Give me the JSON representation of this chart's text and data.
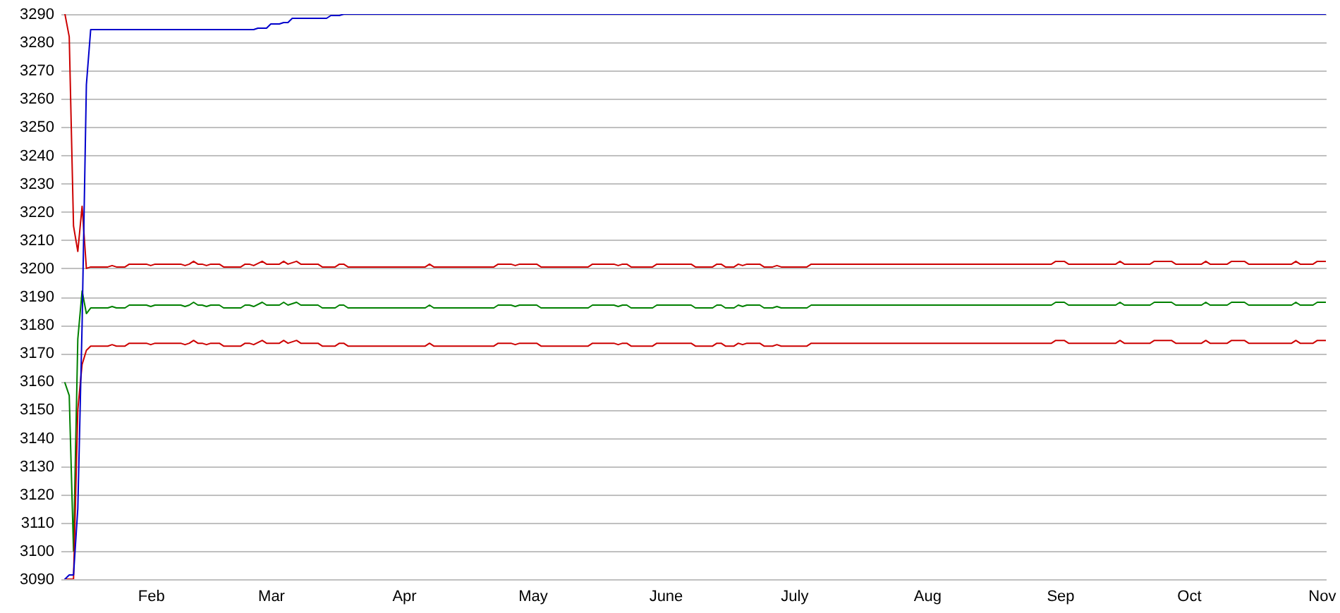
{
  "chart_data": {
    "type": "line",
    "x": [
      "--01-12",
      "--01-13",
      "--01-14",
      "--01-15",
      "--01-16",
      "--01-17",
      "--01-18",
      "--01-22",
      "--01-23",
      "--01-24",
      "--01-26",
      "--01-27",
      "--01-31",
      "--02-01",
      "--02-02",
      "--02-08",
      "--02-09",
      "--02-10",
      "--02-11",
      "--02-12",
      "--02-13",
      "--02-14",
      "--02-15",
      "--02-17",
      "--02-18",
      "--02-22",
      "--02-23",
      "--02-24",
      "--02-25",
      "--02-27",
      "--02-28",
      "--03-03",
      "--03-04",
      "--03-05",
      "--03-07",
      "--03-08",
      "--03-12",
      "--03-13",
      "--03-16",
      "--03-17",
      "--03-18",
      "--03-19",
      "--04-06",
      "--04-07",
      "--04-08",
      "--04-22",
      "--04-23",
      "--04-26",
      "--04-27",
      "--04-28",
      "--05-02",
      "--05-03",
      "--05-14",
      "--05-15",
      "--05-20",
      "--05-21",
      "--05-22",
      "--05-23",
      "--05-24",
      "--05-29",
      "--05-30",
      "--06-07",
      "--06-08",
      "--06-12",
      "--06-13",
      "--06-14",
      "--06-15",
      "--06-17",
      "--06-18",
      "--06-19",
      "--06-20",
      "--06-23",
      "--06-24",
      "--06-26",
      "--06-27",
      "--06-28",
      "--07-04",
      "--07-05",
      "--08-30",
      "--08-31",
      "--09-02",
      "--09-03",
      "--09-14",
      "--09-15",
      "--09-16",
      "--09-22",
      "--09-23",
      "--09-27",
      "--09-28",
      "--10-04",
      "--10-05",
      "--10-06",
      "--10-10",
      "--10-11",
      "--10-14",
      "--10-15",
      "--10-25",
      "--10-26",
      "--10-27",
      "--10-30",
      "--10-31",
      "--11-02"
    ],
    "xlim": [
      "--01-11",
      "--11-02"
    ],
    "xticks": [
      {
        "value": "--02-01",
        "label": "Feb"
      },
      {
        "value": "--03-01",
        "label": "Mar"
      },
      {
        "value": "--04-01",
        "label": "Apr"
      },
      {
        "value": "--05-01",
        "label": "May"
      },
      {
        "value": "--06-01",
        "label": "June"
      },
      {
        "value": "--07-01",
        "label": "July"
      },
      {
        "value": "--08-01",
        "label": "Aug"
      },
      {
        "value": "--09-01",
        "label": "Sep"
      },
      {
        "value": "--10-01",
        "label": "Oct"
      },
      {
        "value": "--11-01",
        "label": "Nov"
      }
    ],
    "ylim": [
      3090,
      3290
    ],
    "yticks": [
      3090,
      3100,
      3110,
      3120,
      3130,
      3140,
      3150,
      3160,
      3170,
      3180,
      3190,
      3200,
      3210,
      3220,
      3230,
      3240,
      3250,
      3260,
      3270,
      3280,
      3290
    ],
    "grid": "y",
    "series": [
      {
        "color": "#cc0000",
        "values": [
          3290,
          3282,
          3215,
          3206,
          3222,
          3200,
          3200.5,
          3200.5,
          3201,
          3200.5,
          3200.5,
          3201.5,
          3201.5,
          3201,
          3201.5,
          3201.5,
          3201,
          3201.5,
          3202.5,
          3201.5,
          3201.5,
          3201,
          3201.5,
          3201.5,
          3200.5,
          3200.5,
          3201.5,
          3201.5,
          3201,
          3202.5,
          3201.5,
          3201.5,
          3202.5,
          3201.5,
          3202.5,
          3201.5,
          3201.5,
          3200.5,
          3200.5,
          3201.5,
          3201.5,
          3200.5,
          3200.5,
          3201.5,
          3200.5,
          3200.5,
          3201.5,
          3201.5,
          3201,
          3201.5,
          3201.5,
          3200.5,
          3200.5,
          3201.5,
          3201.5,
          3201,
          3201.5,
          3201.5,
          3200.5,
          3200.5,
          3201.5,
          3201.5,
          3200.5,
          3200.5,
          3201.5,
          3201.5,
          3200.5,
          3200.5,
          3201.5,
          3201,
          3201.5,
          3201.5,
          3200.5,
          3200.5,
          3201,
          3200.5,
          3200.5,
          3201.5,
          3201.5,
          3202.5,
          3202.5,
          3201.5,
          3201.5,
          3202.5,
          3201.5,
          3201.5,
          3202.5,
          3202.5,
          3201.5,
          3201.5,
          3202.5,
          3201.5,
          3201.5,
          3202.5,
          3202.5,
          3201.5,
          3201.5,
          3202.5,
          3201.5,
          3201.5,
          3202.5,
          3202.5
        ]
      },
      {
        "color": "#008000",
        "values": [
          3159.5,
          3155,
          3100,
          3175,
          3192,
          3184,
          3186,
          3186,
          3186.5,
          3186,
          3186,
          3187,
          3187,
          3186.5,
          3187,
          3187,
          3186.5,
          3187,
          3188,
          3187,
          3187,
          3186.5,
          3187,
          3187,
          3186,
          3186,
          3187,
          3187,
          3186.5,
          3188,
          3187,
          3187,
          3188,
          3187,
          3188,
          3187,
          3187,
          3186,
          3186,
          3187,
          3187,
          3186,
          3186,
          3187,
          3186,
          3186,
          3187,
          3187,
          3186.5,
          3187,
          3187,
          3186,
          3186,
          3187,
          3187,
          3186.5,
          3187,
          3187,
          3186,
          3186,
          3187,
          3187,
          3186,
          3186,
          3187,
          3187,
          3186,
          3186,
          3187,
          3186.5,
          3187,
          3187,
          3186,
          3186,
          3186.5,
          3186,
          3186,
          3187,
          3187,
          3188,
          3188,
          3187,
          3187,
          3188,
          3187,
          3187,
          3188,
          3188,
          3187,
          3187,
          3188,
          3187,
          3187,
          3188,
          3188,
          3187,
          3187,
          3188,
          3187,
          3187,
          3188,
          3188
        ]
      },
      {
        "color": "#cc0000",
        "values": [
          3090,
          3090,
          3090,
          3150,
          3166,
          3171,
          3172.5,
          3172.5,
          3173,
          3172.5,
          3172.5,
          3173.5,
          3173.5,
          3173,
          3173.5,
          3173.5,
          3173,
          3173.5,
          3174.5,
          3173.5,
          3173.5,
          3173,
          3173.5,
          3173.5,
          3172.5,
          3172.5,
          3173.5,
          3173.5,
          3173,
          3174.5,
          3173.5,
          3173.5,
          3174.5,
          3173.5,
          3174.5,
          3173.5,
          3173.5,
          3172.5,
          3172.5,
          3173.5,
          3173.5,
          3172.5,
          3172.5,
          3173.5,
          3172.5,
          3172.5,
          3173.5,
          3173.5,
          3173,
          3173.5,
          3173.5,
          3172.5,
          3172.5,
          3173.5,
          3173.5,
          3173,
          3173.5,
          3173.5,
          3172.5,
          3172.5,
          3173.5,
          3173.5,
          3172.5,
          3172.5,
          3173.5,
          3173.5,
          3172.5,
          3172.5,
          3173.5,
          3173,
          3173.5,
          3173.5,
          3172.5,
          3172.5,
          3173,
          3172.5,
          3172.5,
          3173.5,
          3173.5,
          3174.5,
          3174.5,
          3173.5,
          3173.5,
          3174.5,
          3173.5,
          3173.5,
          3174.5,
          3174.5,
          3173.5,
          3173.5,
          3174.5,
          3173.5,
          3173.5,
          3174.5,
          3174.5,
          3173.5,
          3173.5,
          3174.5,
          3173.5,
          3173.5,
          3174.5,
          3174.5
        ]
      },
      {
        "color": "#0000cc",
        "x": [
          "--01-12",
          "--01-13",
          "--01-14",
          "--01-15",
          "--01-16",
          "--01-17",
          "--01-18",
          "--02-25",
          "--02-26",
          "--02-28",
          "--03-01",
          "--03-03",
          "--03-04",
          "--03-05",
          "--03-06",
          "--03-14",
          "--03-15",
          "--03-17",
          "--03-18",
          "--11-02"
        ],
        "values": [
          3090,
          3091.5,
          3091.5,
          3115,
          3180,
          3265,
          3284.5,
          3284.5,
          3285,
          3285,
          3286.5,
          3286.5,
          3287,
          3287,
          3288.5,
          3288.5,
          3289.5,
          3289.5,
          3290,
          3290
        ]
      }
    ]
  }
}
